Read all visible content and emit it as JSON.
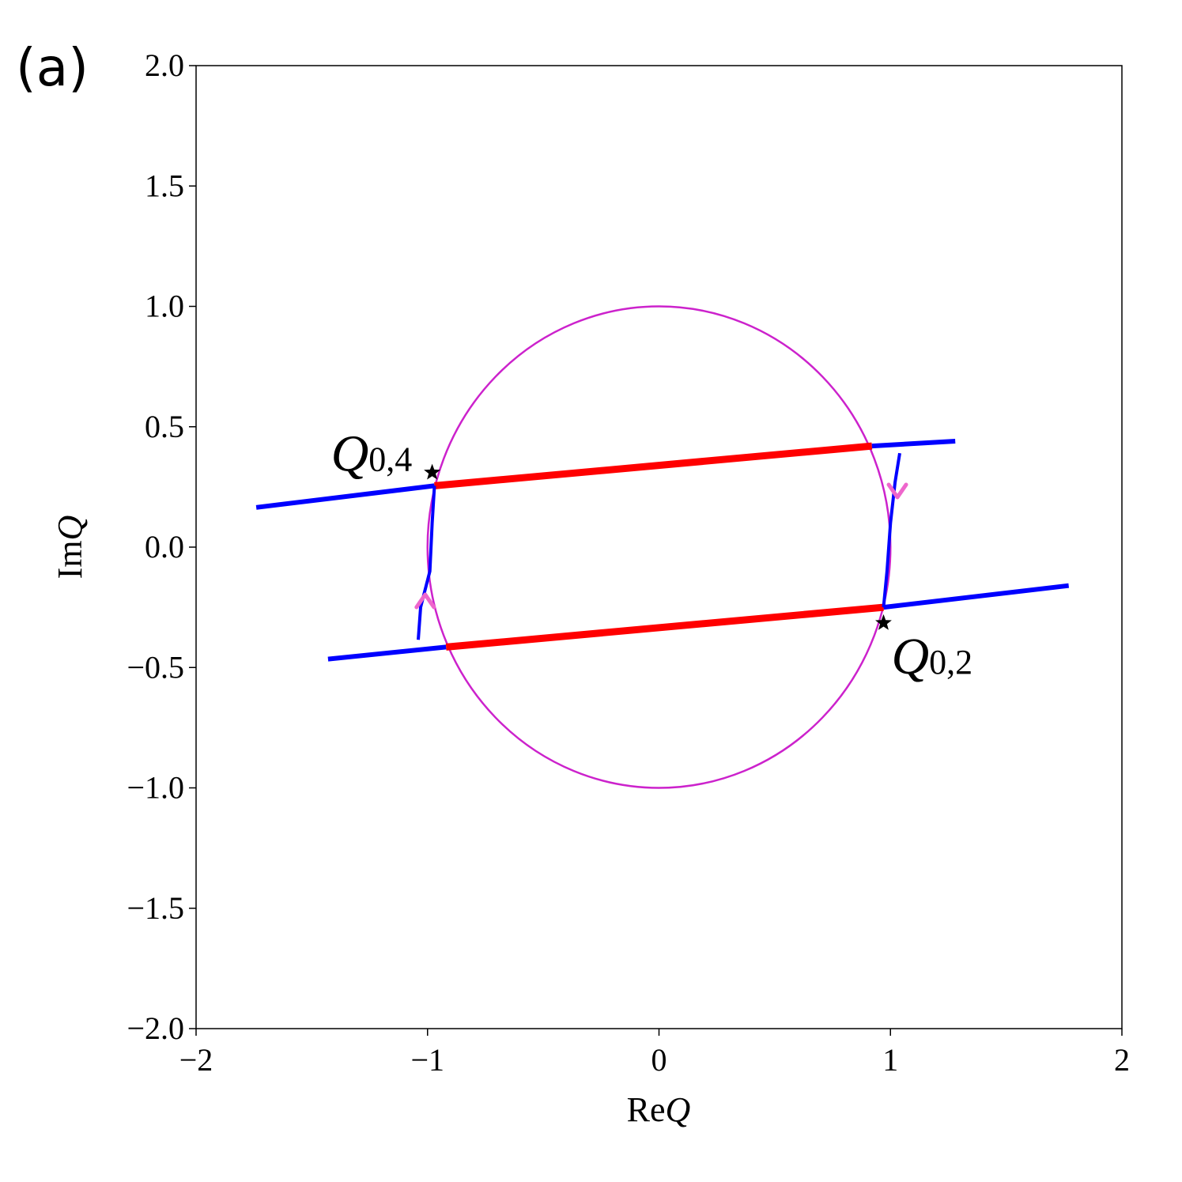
{
  "panel_label": "(a)",
  "chart_data": {
    "type": "line",
    "xlabel": "ReQ",
    "ylabel": "ImQ",
    "xlim": [
      -2,
      2
    ],
    "ylim": [
      -2,
      2
    ],
    "x_ticks": [
      -2,
      -1,
      0,
      1,
      2
    ],
    "x_tick_labels": [
      "−2",
      "−1",
      "0",
      "1",
      "2"
    ],
    "y_ticks": [
      2.0,
      1.5,
      1.0,
      0.5,
      0.0,
      -0.5,
      -1.0,
      -1.5,
      -2.0
    ],
    "y_tick_labels": [
      "2.0",
      "1.5",
      "1.0",
      "0.5",
      "0.0",
      "−0.5",
      "−1.0",
      "−1.5",
      "−2.0"
    ],
    "grid": false,
    "colors": {
      "circle": "#cc22cc",
      "blue": "#0000ff",
      "red": "#ff0000",
      "arrow": "#ee66cc",
      "star": "#000000"
    },
    "series": [
      {
        "color": "#cc22cc",
        "width": 2.5,
        "shape": "circle",
        "center": [
          0,
          0
        ],
        "radius": 1.0
      },
      {
        "color": "#0000ff",
        "width": 6,
        "points": [
          [
            -1.74,
            0.165
          ],
          [
            -0.97,
            0.255
          ]
        ]
      },
      {
        "color": "#ff0000",
        "width": 9,
        "points": [
          [
            -0.97,
            0.255
          ],
          [
            0.92,
            0.42
          ]
        ]
      },
      {
        "color": "#0000ff",
        "width": 6,
        "points": [
          [
            0.92,
            0.42
          ],
          [
            1.28,
            0.44
          ]
        ]
      },
      {
        "color": "#0000ff",
        "width": 6,
        "points": [
          [
            -1.43,
            -0.465
          ],
          [
            -0.92,
            -0.415
          ]
        ]
      },
      {
        "color": "#ff0000",
        "width": 9,
        "points": [
          [
            -0.92,
            -0.415
          ],
          [
            0.97,
            -0.25
          ]
        ]
      },
      {
        "color": "#0000ff",
        "width": 6,
        "points": [
          [
            0.97,
            -0.25
          ],
          [
            1.77,
            -0.16
          ]
        ]
      },
      {
        "color": "#0000ff",
        "width": 4,
        "points": [
          [
            -1.04,
            -0.385
          ],
          [
            -1.03,
            -0.25
          ],
          [
            -0.99,
            -0.1
          ],
          [
            -0.98,
            0.1
          ],
          [
            -0.97,
            0.255
          ]
        ]
      },
      {
        "color": "#0000ff",
        "width": 4,
        "points": [
          [
            1.04,
            0.39
          ],
          [
            1.02,
            0.27
          ],
          [
            1.0,
            0.1
          ],
          [
            0.985,
            -0.1
          ],
          [
            0.97,
            -0.25
          ]
        ]
      }
    ],
    "arrows": [
      {
        "at": [
          -1.01,
          -0.22
        ],
        "direction": "up",
        "color": "#ee66cc"
      },
      {
        "at": [
          1.03,
          0.23
        ],
        "direction": "down",
        "color": "#ee66cc"
      }
    ],
    "markers": [
      {
        "x": -0.98,
        "y": 0.31,
        "symbol": "star",
        "label_base": "Q",
        "label_sub": "0,4",
        "label_pos": "above-left"
      },
      {
        "x": 0.97,
        "y": -0.315,
        "symbol": "star",
        "label_base": "Q",
        "label_sub": "0,2",
        "label_pos": "below-right"
      }
    ]
  }
}
